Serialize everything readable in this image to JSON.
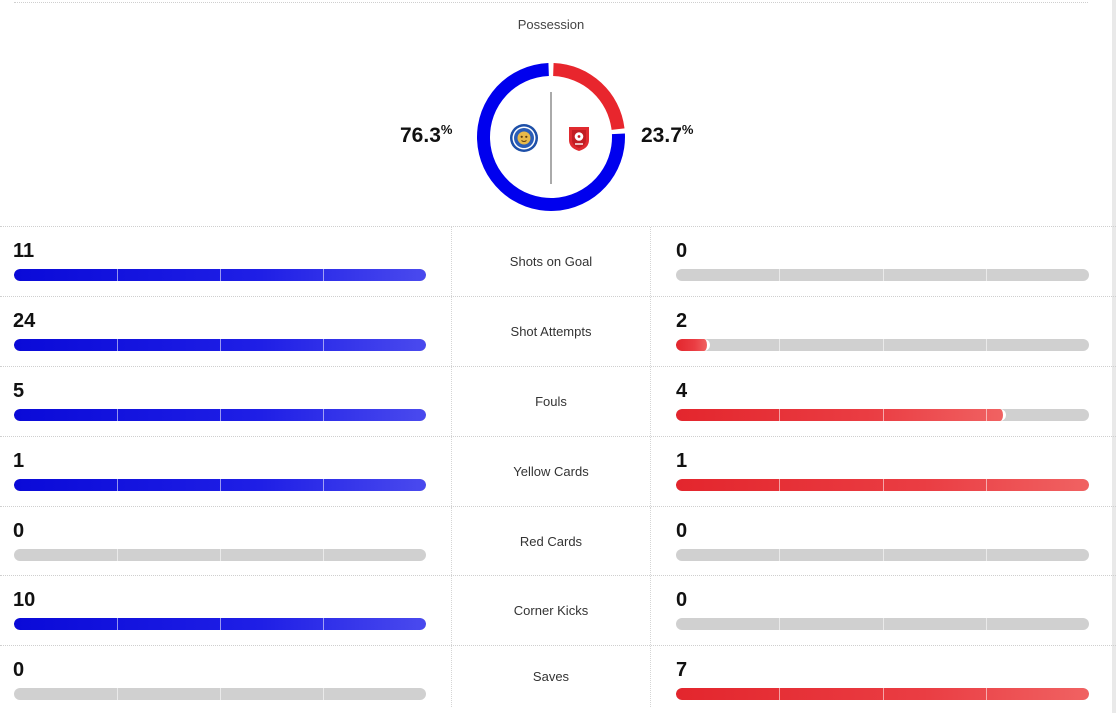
{
  "possession": {
    "title": "Possession",
    "home_pct": "76.3",
    "away_pct": "23.7",
    "pct_symbol": "%",
    "home_fraction": 0.763,
    "away_fraction": 0.237,
    "home_color": "#0000ee",
    "away_color": "#e8262d"
  },
  "teams": {
    "home_badge_icon": "leicester-city-crest-icon",
    "away_badge_icon": "rotherham-united-crest-icon",
    "home_color": "#1a1ae3",
    "away_color": "#e8262d"
  },
  "stats": [
    {
      "label": "Shots on Goal",
      "home": "11",
      "away": "0",
      "home_fill": 1.0,
      "away_fill": 0.0
    },
    {
      "label": "Shot Attempts",
      "home": "24",
      "away": "2",
      "home_fill": 1.0,
      "away_fill": 0.083
    },
    {
      "label": "Fouls",
      "home": "5",
      "away": "4",
      "home_fill": 1.0,
      "away_fill": 0.8
    },
    {
      "label": "Yellow Cards",
      "home": "1",
      "away": "1",
      "home_fill": 1.0,
      "away_fill": 1.0
    },
    {
      "label": "Red Cards",
      "home": "0",
      "away": "0",
      "home_fill": 0.0,
      "away_fill": 0.0
    },
    {
      "label": "Corner Kicks",
      "home": "10",
      "away": "0",
      "home_fill": 1.0,
      "away_fill": 0.0
    },
    {
      "label": "Saves",
      "home": "0",
      "away": "7",
      "home_fill": 0.0,
      "away_fill": 1.0
    }
  ]
}
